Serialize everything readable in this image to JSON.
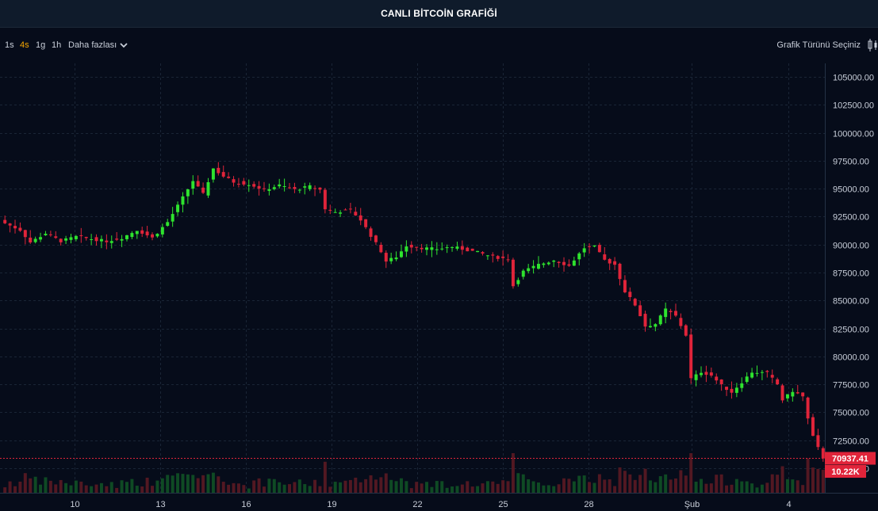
{
  "header": {
    "title": "CANLI BİTCOİN GRAFİĞİ"
  },
  "toolbar": {
    "timeframes": [
      {
        "label": "1s",
        "active": false
      },
      {
        "label": "4s",
        "active": true
      },
      {
        "label": "1g",
        "active": false
      },
      {
        "label": "1h",
        "active": false
      }
    ],
    "more_label": "Daha fazlası",
    "chart_type_label": "Grafik Türünü Seçiniz",
    "chart_type_icon": "candlestick-icon"
  },
  "colors": {
    "up": "#2ee32e",
    "down": "#e0243a",
    "grid": "#1a2536",
    "price_tag": "#e0243a"
  },
  "chart_data": {
    "type": "candlestick",
    "x_ticks": [
      "10",
      "13",
      "16",
      "19",
      "22",
      "25",
      "28",
      "Şub",
      "4"
    ],
    "y_ticks": [
      "105000.00",
      "102500.00",
      "100000.00",
      "97500.00",
      "95000.00",
      "92500.00",
      "90000.00",
      "87500.00",
      "85000.00",
      "82500.00",
      "80000.00",
      "77500.00",
      "75000.00",
      "72500.00",
      "70000.00"
    ],
    "y_range": [
      67800,
      106200
    ],
    "current_price": "70937.41",
    "current_price_value": 70937.41,
    "volume_label": "10.22K",
    "anchors": [
      [
        0,
        91900
      ],
      [
        3,
        91300
      ],
      [
        5,
        90200
      ],
      [
        8,
        91000
      ],
      [
        11,
        90300
      ],
      [
        14,
        90700
      ],
      [
        17,
        90500
      ],
      [
        20,
        90300
      ],
      [
        23,
        90600
      ],
      [
        26,
        91300
      ],
      [
        29,
        90600
      ],
      [
        32,
        92000
      ],
      [
        35,
        94200
      ],
      [
        37,
        95700
      ],
      [
        39,
        94500
      ],
      [
        41,
        96800
      ],
      [
        43,
        96100
      ],
      [
        45,
        95600
      ],
      [
        48,
        95400
      ],
      [
        51,
        94900
      ],
      [
        54,
        95300
      ],
      [
        57,
        94900
      ],
      [
        60,
        95200
      ],
      [
        62,
        94900
      ],
      [
        63,
        93200
      ],
      [
        65,
        92900
      ],
      [
        68,
        93100
      ],
      [
        70,
        92200
      ],
      [
        72,
        90800
      ],
      [
        74,
        89400
      ],
      [
        75,
        88500
      ],
      [
        77,
        88900
      ],
      [
        79,
        89900
      ],
      [
        82,
        89700
      ],
      [
        85,
        89600
      ],
      [
        88,
        89800
      ],
      [
        91,
        89500
      ],
      [
        93,
        89300
      ],
      [
        96,
        88900
      ],
      [
        99,
        88700
      ],
      [
        100,
        86300
      ],
      [
        102,
        87600
      ],
      [
        105,
        88200
      ],
      [
        108,
        88600
      ],
      [
        111,
        88100
      ],
      [
        114,
        89700
      ],
      [
        116,
        89800
      ],
      [
        118,
        88600
      ],
      [
        120,
        88200
      ],
      [
        122,
        85800
      ],
      [
        124,
        84600
      ],
      [
        126,
        82700
      ],
      [
        128,
        82900
      ],
      [
        130,
        84200
      ],
      [
        132,
        83600
      ],
      [
        134,
        81900
      ],
      [
        135,
        78000
      ],
      [
        137,
        78600
      ],
      [
        139,
        78300
      ],
      [
        141,
        77400
      ],
      [
        143,
        76800
      ],
      [
        145,
        77700
      ],
      [
        147,
        78600
      ],
      [
        150,
        78500
      ],
      [
        152,
        77500
      ],
      [
        153,
        76100
      ],
      [
        155,
        76900
      ],
      [
        157,
        76400
      ],
      [
        158,
        74400
      ],
      [
        159,
        72800
      ],
      [
        160,
        71800
      ],
      [
        161,
        70937
      ]
    ]
  }
}
